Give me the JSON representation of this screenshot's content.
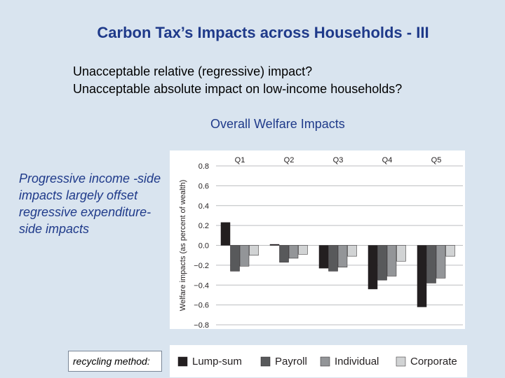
{
  "slide": {
    "title": "Carbon Tax’s Impacts across Households - III",
    "bullets": [
      "Unacceptable relative (regressive) impact?",
      "Unacceptable absolute impact on low-income households?"
    ],
    "chart_heading": "Overall Welfare Impacts",
    "side_note": "Progressive income -side impacts largely offset regressive expenditure-side impacts",
    "recycling_label": "recycling method:"
  },
  "colors": {
    "background": "#d9e4ef",
    "title": "#1f3a8a",
    "lump_sum": "#231f20",
    "payroll": "#58595b",
    "individual": "#939598",
    "corporate": "#d1d3d4"
  },
  "chart_data": {
    "type": "bar",
    "categories": [
      "Q1",
      "Q2",
      "Q3",
      "Q4",
      "Q5"
    ],
    "ylabel": "Welfare impacts (as percent of wealth)",
    "ylim": [
      -0.8,
      0.8
    ],
    "yticks": [
      "0.8",
      "0.6",
      "0.4",
      "0.2",
      "0.0",
      "−0.2",
      "−0.4",
      "−0.6",
      "−0.8"
    ],
    "grid": true,
    "legend_position": "bottom",
    "series": [
      {
        "name": "Lump-sum",
        "values": [
          0.23,
          0.01,
          -0.23,
          -0.44,
          -0.62
        ]
      },
      {
        "name": "Payroll",
        "values": [
          -0.26,
          -0.17,
          -0.26,
          -0.35,
          -0.38
        ]
      },
      {
        "name": "Individual",
        "values": [
          -0.21,
          -0.13,
          -0.22,
          -0.31,
          -0.33
        ]
      },
      {
        "name": "Corporate",
        "values": [
          -0.1,
          -0.09,
          -0.11,
          -0.16,
          -0.11
        ]
      }
    ]
  }
}
